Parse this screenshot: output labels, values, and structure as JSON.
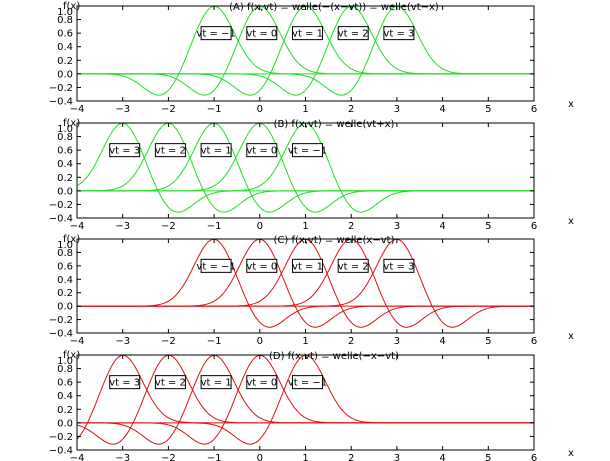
{
  "chart_data": [
    {
      "type": "line",
      "id": "A",
      "title": "(A) f(x,vt) = welle(−(x−vt)) = welle(vt−x)",
      "ylabel": "f(x)",
      "xlabel": "x",
      "xlim": [
        -4,
        6
      ],
      "ylim": [
        -0.4,
        1.0
      ],
      "xticks": [
        -4,
        -3,
        -2,
        -1,
        0,
        1,
        2,
        3,
        4,
        5,
        6
      ],
      "yticks": [
        1.0,
        0.8,
        0.6,
        0.4,
        0.2,
        0.0,
        -0.2,
        -0.4
      ],
      "xticklabels": [
        "−4",
        "−3",
        "−2",
        "−1",
        "0",
        "1",
        "2",
        "3",
        "4",
        "5",
        "6"
      ],
      "yticklabels": [
        "1.0",
        "0.8",
        "0.6",
        "0.4",
        "0.2",
        "0.0",
        "−0.2",
        "−0.4"
      ],
      "color": "#22dd22",
      "series": [
        {
          "name": "vt = −1",
          "shift": -1
        },
        {
          "name": "vt = 0",
          "shift": 0
        },
        {
          "name": "vt = 1",
          "shift": 1
        },
        {
          "name": "vt = 2",
          "shift": 2
        },
        {
          "name": "vt = 3",
          "shift": 3
        }
      ],
      "orientation": 1
    },
    {
      "type": "line",
      "id": "B",
      "title": "(B) f(x,vt) = welle(vt+x)",
      "ylabel": "f(x)",
      "xlabel": "x",
      "xlim": [
        -4,
        6
      ],
      "ylim": [
        -0.4,
        1.0
      ],
      "xticks": [
        -4,
        -3,
        -2,
        -1,
        0,
        1,
        2,
        3,
        4,
        5,
        6
      ],
      "yticks": [
        1.0,
        0.8,
        0.6,
        0.4,
        0.2,
        0.0,
        -0.2,
        -0.4
      ],
      "xticklabels": [
        "−4",
        "−3",
        "−2",
        "−1",
        "0",
        "1",
        "2",
        "3",
        "4",
        "5",
        "6"
      ],
      "yticklabels": [
        "1.0",
        "0.8",
        "0.6",
        "0.4",
        "0.2",
        "0.0",
        "−0.2",
        "−0.4"
      ],
      "color": "#22dd22",
      "series": [
        {
          "name": "vt = 3",
          "shift": -3
        },
        {
          "name": "vt = 2",
          "shift": -2
        },
        {
          "name": "vt = 1",
          "shift": -1
        },
        {
          "name": "vt = 0",
          "shift": 0
        },
        {
          "name": "vt = −1",
          "shift": 1
        }
      ],
      "orientation": -1
    },
    {
      "type": "line",
      "id": "C",
      "title": "(C) f(x,vt) = welle(x−vt)",
      "ylabel": "f(x)",
      "xlabel": "x",
      "xlim": [
        -4,
        6
      ],
      "ylim": [
        -0.4,
        1.0
      ],
      "xticks": [
        -4,
        -3,
        -2,
        -1,
        0,
        1,
        2,
        3,
        4,
        5,
        6
      ],
      "yticks": [
        1.0,
        0.8,
        0.6,
        0.4,
        0.2,
        0.0,
        -0.2,
        -0.4
      ],
      "xticklabels": [
        "−4",
        "−3",
        "−2",
        "−1",
        "0",
        "1",
        "2",
        "3",
        "4",
        "5",
        "6"
      ],
      "yticklabels": [
        "1.0",
        "0.8",
        "0.6",
        "0.4",
        "0.2",
        "0.0",
        "−0.2",
        "−0.4"
      ],
      "color": "#dd1111",
      "series": [
        {
          "name": "vt = −1",
          "shift": -1
        },
        {
          "name": "vt = 0",
          "shift": 0
        },
        {
          "name": "vt = 1",
          "shift": 1
        },
        {
          "name": "vt = 2",
          "shift": 2
        },
        {
          "name": "vt = 3",
          "shift": 3
        }
      ],
      "orientation": -1
    },
    {
      "type": "line",
      "id": "D",
      "title": "(D) f(x,vt) = welle(−x−vt)",
      "ylabel": "f(x)",
      "xlabel": "x",
      "xlim": [
        -4,
        6
      ],
      "ylim": [
        -0.4,
        1.0
      ],
      "xticks": [
        -4,
        -3,
        -2,
        -1,
        0,
        1,
        2,
        3,
        4,
        5,
        6
      ],
      "yticks": [
        1.0,
        0.8,
        0.6,
        0.4,
        0.2,
        0.0,
        -0.2,
        -0.4
      ],
      "xticklabels": [
        "−4",
        "−3",
        "−2",
        "−1",
        "0",
        "1",
        "2",
        "3",
        "4",
        "5",
        "6"
      ],
      "yticklabels": [
        "1.0",
        "0.8",
        "0.6",
        "0.4",
        "0.2",
        "0.0",
        "−0.2",
        "−0.4"
      ],
      "color": "#dd1111",
      "series": [
        {
          "name": "vt = 3",
          "shift": -3
        },
        {
          "name": "vt = 2",
          "shift": -2
        },
        {
          "name": "vt = 1",
          "shift": -1
        },
        {
          "name": "vt = 0",
          "shift": 0
        },
        {
          "name": "vt = −1",
          "shift": 1
        }
      ],
      "orientation": 1
    }
  ]
}
